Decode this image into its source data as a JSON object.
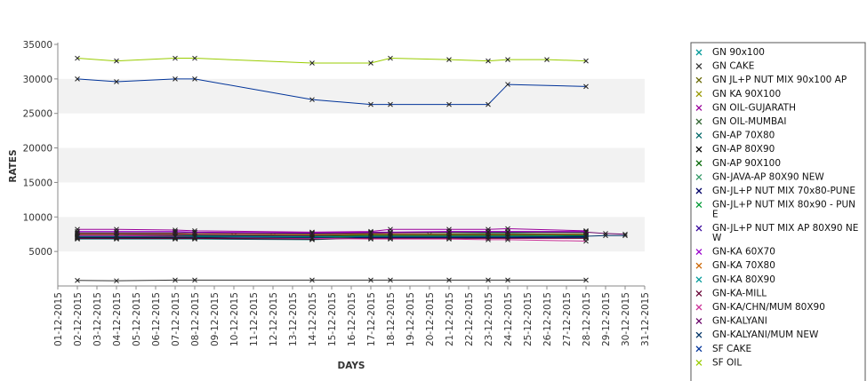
{
  "chart_data": {
    "type": "line",
    "title": "",
    "xlabel": "DAYS",
    "ylabel": "RATES",
    "ylim": [
      0,
      35000
    ],
    "y_ticks": [
      5000,
      10000,
      15000,
      20000,
      25000,
      30000,
      35000
    ],
    "grid": "alternating horizontal bands",
    "legend_position": "right",
    "categories": [
      "01-12-2015",
      "02-12-2015",
      "03-12-2015",
      "04-12-2015",
      "05-12-2015",
      "06-12-2015",
      "07-12-2015",
      "08-12-2015",
      "09-12-2015",
      "10-12-2015",
      "11-12-2015",
      "12-12-2015",
      "13-12-2015",
      "14-12-2015",
      "15-12-2015",
      "16-12-2015",
      "17-12-2015",
      "18-12-2015",
      "19-12-2015",
      "20-12-2015",
      "21-12-2015",
      "22-12-2015",
      "23-12-2015",
      "24-12-2015",
      "25-12-2015",
      "26-12-2015",
      "27-12-2015",
      "28-12-2015",
      "29-12-2015",
      "30-12-2015",
      "31-12-2015"
    ],
    "series": [
      {
        "name": "GN 90x100",
        "color": "#009999",
        "values": [
          null,
          7500,
          null,
          7500,
          null,
          null,
          7500,
          7500,
          null,
          7300,
          null,
          7300,
          null,
          7200,
          null,
          7300,
          7400,
          7400,
          null,
          7400,
          7500,
          null,
          7600,
          7600,
          null,
          null,
          null,
          7400,
          null,
          null,
          null
        ]
      },
      {
        "name": "GN CAKE",
        "color": "#333333",
        "values": [
          null,
          800,
          null,
          750,
          null,
          null,
          850,
          850,
          null,
          null,
          null,
          null,
          null,
          850,
          null,
          null,
          850,
          850,
          null,
          null,
          850,
          null,
          850,
          850,
          null,
          null,
          null,
          850,
          null,
          null,
          null
        ]
      },
      {
        "name": "GN JL+P NUT MIX 90x100 AP",
        "color": "#666600",
        "values": [
          null,
          7200,
          null,
          7200,
          null,
          null,
          7200,
          7200,
          null,
          null,
          null,
          null,
          null,
          7100,
          null,
          null,
          7300,
          7300,
          null,
          null,
          7300,
          null,
          7300,
          7300,
          null,
          null,
          null,
          7200,
          null,
          null,
          null
        ]
      },
      {
        "name": "GN KA 90X100",
        "color": "#999900",
        "values": [
          null,
          7000,
          null,
          7000,
          null,
          null,
          7000,
          7000,
          null,
          null,
          null,
          null,
          null,
          6900,
          null,
          null,
          7000,
          7000,
          null,
          null,
          7000,
          null,
          7000,
          7000,
          null,
          null,
          null,
          7000,
          null,
          null,
          null
        ]
      },
      {
        "name": "GN OIL-GUJARATH",
        "color": "#990099",
        "values": [
          null,
          8200,
          null,
          8200,
          null,
          null,
          8100,
          8000,
          null,
          null,
          null,
          null,
          null,
          7800,
          null,
          null,
          7900,
          8200,
          null,
          null,
          8200,
          null,
          8200,
          8300,
          null,
          null,
          null,
          8000,
          null,
          null,
          null
        ]
      },
      {
        "name": "GN OIL-MUMBAI",
        "color": "#336633",
        "values": [
          null,
          7600,
          null,
          7600,
          null,
          null,
          7600,
          7500,
          null,
          null,
          null,
          null,
          null,
          7500,
          null,
          null,
          7600,
          7700,
          null,
          null,
          7700,
          null,
          7700,
          7800,
          null,
          null,
          null,
          7700,
          null,
          null,
          null
        ]
      },
      {
        "name": "GN-AP 70X80",
        "color": "#006666",
        "values": [
          null,
          6800,
          null,
          6800,
          null,
          null,
          6800,
          6800,
          null,
          null,
          null,
          null,
          null,
          6700,
          null,
          null,
          7000,
          7000,
          null,
          null,
          7000,
          null,
          7000,
          7000,
          null,
          null,
          null,
          7000,
          null,
          null,
          null
        ]
      },
      {
        "name": "GN-AP 80X90",
        "color": "#000000",
        "values": [
          null,
          7000,
          null,
          7000,
          null,
          null,
          7000,
          7000,
          null,
          null,
          null,
          null,
          null,
          7000,
          null,
          null,
          7200,
          7200,
          null,
          null,
          7200,
          null,
          7200,
          7200,
          null,
          null,
          null,
          7200,
          null,
          null,
          null
        ]
      },
      {
        "name": "GN-AP 90X100",
        "color": "#006600",
        "values": [
          null,
          7300,
          null,
          7300,
          null,
          null,
          7300,
          7300,
          null,
          null,
          null,
          null,
          null,
          7200,
          null,
          null,
          7400,
          7400,
          null,
          null,
          7400,
          null,
          7400,
          7400,
          null,
          null,
          null,
          7400,
          null,
          null,
          null
        ]
      },
      {
        "name": "GN-JAVA-AP 80X90 NEW",
        "color": "#339966",
        "values": [
          null,
          7700,
          null,
          7700,
          null,
          null,
          7700,
          7700,
          null,
          null,
          null,
          null,
          null,
          7600,
          null,
          null,
          7700,
          7700,
          null,
          null,
          7700,
          null,
          7700,
          7700,
          null,
          null,
          null,
          7700,
          null,
          null,
          null
        ]
      },
      {
        "name": "GN-JL+P NUT MIX 70x80-PUNE",
        "color": "#000066",
        "values": [
          null,
          6900,
          null,
          6900,
          null,
          null,
          6900,
          6900,
          null,
          null,
          null,
          null,
          null,
          6800,
          null,
          null,
          7000,
          7000,
          null,
          null,
          7000,
          null,
          7000,
          7000,
          null,
          null,
          null,
          7100,
          null,
          null,
          null
        ]
      },
      {
        "name": "GN-JL+P NUT MIX 80x90 - PUNE",
        "color": "#009933",
        "values": [
          null,
          7100,
          null,
          7100,
          null,
          null,
          7100,
          7100,
          null,
          null,
          null,
          null,
          null,
          7000,
          null,
          null,
          7200,
          7200,
          null,
          null,
          7200,
          null,
          7200,
          7200,
          null,
          null,
          null,
          7300,
          null,
          null,
          null
        ]
      },
      {
        "name": "GN-JL+P NUT MIX AP 80X90 NEW",
        "color": "#330099",
        "values": [
          null,
          7400,
          null,
          7400,
          null,
          null,
          7400,
          7400,
          null,
          null,
          null,
          null,
          null,
          7300,
          null,
          null,
          7500,
          7500,
          null,
          null,
          7500,
          null,
          7500,
          7500,
          null,
          null,
          null,
          7500,
          null,
          null,
          null
        ]
      },
      {
        "name": "GN-KA 60X70",
        "color": "#9900cc",
        "values": [
          null,
          7900,
          null,
          7900,
          null,
          null,
          7900,
          7800,
          null,
          null,
          null,
          null,
          null,
          7700,
          null,
          null,
          7800,
          7800,
          null,
          null,
          7900,
          null,
          7900,
          7900,
          null,
          null,
          null,
          7900,
          null,
          null,
          null
        ]
      },
      {
        "name": "GN-KA 70X80",
        "color": "#cc6600",
        "values": [
          null,
          7500,
          null,
          7500,
          null,
          null,
          7500,
          7500,
          null,
          null,
          null,
          null,
          null,
          7400,
          null,
          null,
          7500,
          7500,
          null,
          null,
          7500,
          null,
          7500,
          7500,
          null,
          null,
          null,
          7500,
          null,
          null,
          null
        ]
      },
      {
        "name": "GN-KA 80X90",
        "color": "#009999",
        "values": [
          null,
          7200,
          null,
          7200,
          null,
          null,
          7200,
          7200,
          null,
          null,
          null,
          null,
          null,
          7100,
          null,
          null,
          7200,
          7200,
          null,
          null,
          7200,
          null,
          7200,
          7200,
          null,
          null,
          null,
          7200,
          null,
          null,
          null
        ]
      },
      {
        "name": "GN-KA-MILL",
        "color": "#660033",
        "values": [
          null,
          6900,
          null,
          6900,
          null,
          null,
          6900,
          6900,
          null,
          null,
          null,
          null,
          null,
          6800,
          null,
          null,
          6900,
          6900,
          null,
          null,
          6900,
          null,
          6900,
          6900,
          null,
          null,
          null,
          6900,
          null,
          null,
          null
        ]
      },
      {
        "name": "GN-KA/CHN/MUM 80X90",
        "color": "#cc3399",
        "values": [
          null,
          7300,
          null,
          7300,
          null,
          null,
          7200,
          7100,
          null,
          null,
          null,
          null,
          null,
          6900,
          null,
          null,
          6800,
          6800,
          null,
          null,
          6800,
          null,
          6700,
          6700,
          null,
          null,
          null,
          6500,
          null,
          null,
          null
        ]
      },
      {
        "name": "GN-KALYANI",
        "color": "#660066",
        "values": [
          null,
          7700,
          null,
          7700,
          null,
          null,
          7700,
          7700,
          null,
          null,
          null,
          null,
          null,
          7600,
          null,
          null,
          7700,
          7700,
          null,
          null,
          7800,
          null,
          7800,
          7800,
          null,
          null,
          null,
          7800,
          7600,
          7500,
          null
        ]
      },
      {
        "name": "GN-KALYANI/MUM NEW",
        "color": "#003366",
        "values": [
          null,
          7100,
          null,
          7100,
          null,
          null,
          7100,
          7100,
          null,
          null,
          null,
          null,
          null,
          7000,
          null,
          null,
          7100,
          7100,
          null,
          null,
          7100,
          null,
          7100,
          7100,
          null,
          null,
          null,
          7200,
          7300,
          7300,
          null
        ]
      },
      {
        "name": "SF CAKE",
        "color": "#003399",
        "values": [
          null,
          30000,
          null,
          29600,
          null,
          null,
          30000,
          30000,
          null,
          null,
          null,
          null,
          null,
          27000,
          null,
          null,
          26300,
          26300,
          null,
          null,
          26300,
          null,
          26300,
          29200,
          null,
          null,
          null,
          28900,
          null,
          null,
          null
        ]
      },
      {
        "name": "SF OIL",
        "color": "#99cc00",
        "values": [
          null,
          33000,
          null,
          32600,
          null,
          null,
          33000,
          33000,
          null,
          null,
          null,
          null,
          null,
          32300,
          null,
          null,
          32300,
          33000,
          null,
          null,
          32800,
          null,
          32600,
          32800,
          null,
          32800,
          null,
          32600,
          null,
          null,
          null
        ]
      }
    ]
  }
}
